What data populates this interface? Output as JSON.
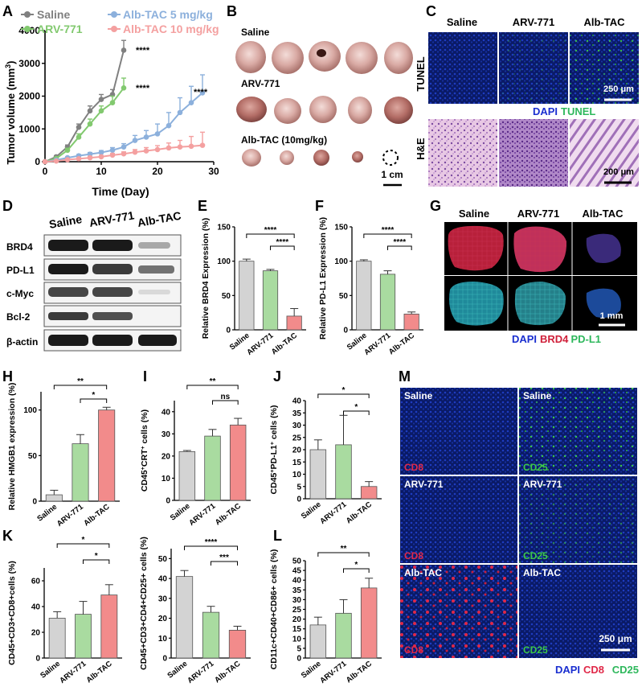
{
  "panels": {
    "A": {
      "letter": "A",
      "legend": [
        "Saline",
        "ARV-771",
        "Alb-TAC 5 mg/kg",
        "Alb-TAC 10 mg/kg"
      ],
      "ylabel_main": "Tumor volume (mm",
      "ylabel_sup": "3",
      "ylabel_end": ")",
      "xlabel": "Time (Day)",
      "sig": [
        "****",
        "****",
        "****"
      ]
    },
    "B": {
      "letter": "B",
      "groups": [
        "Saline",
        "ARV-771",
        "Alb-TAC (10mg/kg)"
      ],
      "scale": "1 cm"
    },
    "C": {
      "letter": "C",
      "cols": [
        "Saline",
        "ARV-771",
        "Alb-TAC"
      ],
      "rows": [
        "TUNEL",
        "H&E"
      ],
      "stain_dapi": "DAPI",
      "stain_tunel": "TUNEL",
      "scale1": "250 μm",
      "scale2": "200 μm"
    },
    "D": {
      "letter": "D",
      "cols": [
        "Saline",
        "ARV-771",
        "Alb-TAC"
      ],
      "rows": [
        "BRD4",
        "PD-L1",
        "c-Myc",
        "Bcl-2",
        "β-actin"
      ]
    },
    "E": {
      "letter": "E",
      "ylabel": "Relative BRD4 Expression (%)",
      "sig": [
        "****",
        "****"
      ]
    },
    "F": {
      "letter": "F",
      "ylabel": "Relative PD-L1 Expression (%)",
      "sig": [
        "****",
        "****"
      ]
    },
    "G": {
      "letter": "G",
      "cols": [
        "Saline",
        "ARV-771",
        "Alb-TAC"
      ],
      "scale": "1 mm",
      "legend": [
        "DAPI",
        "BRD4",
        "PD-L1"
      ]
    },
    "H": {
      "letter": "H",
      "ylabel": "Relative HMGB1 expression (%)",
      "sig": [
        "**",
        "*"
      ]
    },
    "I": {
      "letter": "I",
      "ylabel_pre": "CD45",
      "ylabel_mid": "CRT",
      "ylabel_post": " cells (%)",
      "sig": [
        "**",
        "ns"
      ]
    },
    "J": {
      "letter": "J",
      "ylabel_pre": "CD45",
      "ylabel_mid": "PD-L1",
      "ylabel_post": " cells (%)",
      "sig": [
        "*",
        "*"
      ]
    },
    "K": {
      "letter": "K",
      "ylabel": "CD45+CD3+CD8+cells (%)",
      "sig": [
        "*",
        "*"
      ]
    },
    "K2": {
      "ylabel": "CD45+CD3+CD4+CD25+ cells (%)",
      "sig": [
        "****",
        "***"
      ]
    },
    "L": {
      "letter": "L",
      "ylabel": "CD11c+CD40+CD86+ cells (%)",
      "sig": [
        "**",
        "*"
      ]
    },
    "M": {
      "letter": "M",
      "rows": [
        "Saline",
        "ARV-771",
        "Alb-TAC"
      ],
      "left_tag": "CD8",
      "right_tag": "CD25",
      "scale": "250 μm",
      "legend": [
        "DAPI",
        "CD8",
        "CD25"
      ]
    }
  },
  "bar_groups": [
    "Saline",
    "ARV-771",
    "Alb-TAC"
  ],
  "colors": {
    "saline": "#d3d3d3",
    "arv": "#a9dba0",
    "alb": "#f28b8b",
    "line_saline": "#808080",
    "line_arv": "#82c96f",
    "line_alb5": "#8cb0dc",
    "line_alb10": "#f4a0a0"
  },
  "chart_data": [
    {
      "panel": "A",
      "type": "line",
      "x": [
        0,
        2,
        5,
        8,
        10,
        12,
        14,
        16,
        18,
        20,
        22,
        24,
        26,
        28
      ],
      "xlabel": "Time (Day)",
      "ylabel": "Tumor volume (mm3)",
      "xlim": [
        0,
        30
      ],
      "ylim": [
        0,
        4000
      ],
      "xticks": [
        0,
        10,
        20,
        30
      ],
      "yticks": [
        0,
        1000,
        2000,
        3000,
        4000
      ],
      "series": [
        {
          "name": "Saline",
          "x": [
            0,
            2,
            4,
            6,
            8,
            10,
            12,
            14
          ],
          "values": [
            0,
            150,
            450,
            1050,
            1550,
            1900,
            2050,
            3400
          ],
          "err": [
            0,
            30,
            60,
            100,
            150,
            150,
            150,
            300
          ]
        },
        {
          "name": "ARV-771",
          "x": [
            0,
            2,
            4,
            6,
            8,
            10,
            12,
            14
          ],
          "values": [
            0,
            100,
            350,
            750,
            1150,
            1550,
            1800,
            2250
          ],
          "err": [
            0,
            30,
            60,
            100,
            150,
            150,
            200,
            300
          ]
        },
        {
          "name": "Alb-TAC 5 mg/kg",
          "x": [
            0,
            2,
            4,
            6,
            8,
            10,
            12,
            14,
            16,
            18,
            20,
            22,
            24,
            26,
            28
          ],
          "values": [
            0,
            50,
            120,
            180,
            230,
            280,
            350,
            450,
            650,
            750,
            850,
            1100,
            1500,
            1800,
            2100
          ],
          "err": [
            0,
            10,
            30,
            40,
            50,
            60,
            80,
            100,
            150,
            200,
            300,
            400,
            450,
            500,
            550
          ]
        },
        {
          "name": "Alb-TAC 10 mg/kg",
          "x": [
            0,
            2,
            4,
            6,
            8,
            10,
            12,
            14,
            16,
            18,
            20,
            22,
            24,
            26,
            28
          ],
          "values": [
            0,
            20,
            60,
            90,
            120,
            150,
            200,
            240,
            290,
            330,
            370,
            420,
            450,
            470,
            500
          ],
          "err": [
            0,
            10,
            20,
            30,
            40,
            40,
            50,
            60,
            80,
            100,
            120,
            150,
            200,
            300,
            400
          ]
        }
      ]
    },
    {
      "panel": "E",
      "type": "bar",
      "categories": [
        "Saline",
        "ARV-771",
        "Alb-TAC"
      ],
      "values": [
        100,
        86,
        20
      ],
      "err": [
        3,
        2,
        11
      ],
      "ylim": [
        0,
        150
      ],
      "yticks": [
        0,
        50,
        100,
        150
      ]
    },
    {
      "panel": "F",
      "type": "bar",
      "categories": [
        "Saline",
        "ARV-771",
        "Alb-TAC"
      ],
      "values": [
        100,
        81,
        23
      ],
      "err": [
        2,
        5,
        3
      ],
      "ylim": [
        0,
        150
      ],
      "yticks": [
        0,
        50,
        100,
        150
      ]
    },
    {
      "panel": "H",
      "type": "bar",
      "categories": [
        "Saline",
        "ARV-771",
        "Alb-TAC"
      ],
      "values": [
        7,
        63,
        100
      ],
      "err": [
        5,
        10,
        3
      ],
      "ylim": [
        0,
        120
      ],
      "yticks": [
        0,
        50,
        100
      ]
    },
    {
      "panel": "I",
      "type": "bar",
      "categories": [
        "Saline",
        "ARV-771",
        "Alb-TAC"
      ],
      "values": [
        22,
        29,
        34
      ],
      "err": [
        0.5,
        3,
        3
      ],
      "ylim": [
        0,
        45
      ],
      "yticks": [
        0,
        10,
        20,
        30,
        40
      ]
    },
    {
      "panel": "J",
      "type": "bar",
      "categories": [
        "Saline",
        "ARV-771",
        "Alb-TAC"
      ],
      "values": [
        20,
        22,
        5
      ],
      "err": [
        4,
        12,
        2
      ],
      "ylim": [
        0,
        40
      ],
      "yticks": [
        0,
        5,
        10,
        15,
        20,
        25,
        30,
        35,
        40
      ]
    },
    {
      "panel": "K",
      "type": "bar",
      "categories": [
        "Saline",
        "ARV-771",
        "Alb-TAC"
      ],
      "values": [
        31,
        34,
        49
      ],
      "err": [
        5,
        10,
        8
      ],
      "ylim": [
        0,
        70
      ],
      "yticks": [
        0,
        20,
        40,
        60
      ]
    },
    {
      "panel": "K2",
      "type": "bar",
      "categories": [
        "Saline",
        "ARV-771",
        "Alb-TAC"
      ],
      "values": [
        41,
        23,
        14
      ],
      "err": [
        3,
        3,
        2
      ],
      "ylim": [
        0,
        55
      ],
      "yticks": [
        0,
        10,
        20,
        30,
        40,
        50
      ]
    },
    {
      "panel": "L",
      "type": "bar",
      "categories": [
        "Saline",
        "ARV-771",
        "Alb-TAC"
      ],
      "values": [
        17,
        23,
        36
      ],
      "err": [
        4,
        7,
        5
      ],
      "ylim": [
        0,
        50
      ],
      "yticks": [
        0,
        5,
        10,
        15,
        20,
        25,
        30,
        35,
        40,
        45,
        50
      ]
    }
  ]
}
